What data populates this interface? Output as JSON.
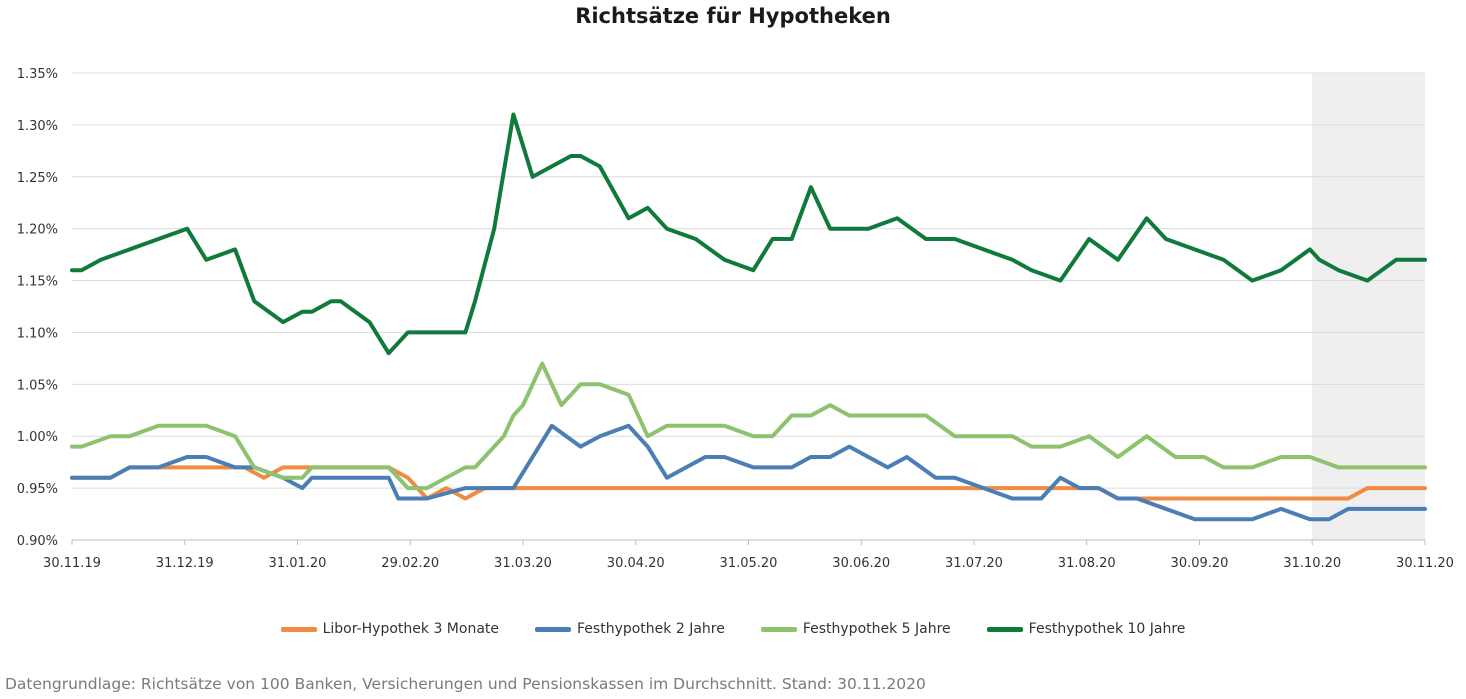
{
  "chart_data": {
    "type": "line",
    "title": "Richtsätze für Hypotheken",
    "x_tick_labels": [
      "30.11.19",
      "31.12.19",
      "31.01.20",
      "29.02.20",
      "31.03.20",
      "30.04.20",
      "31.05.20",
      "30.06.20",
      "31.07.20",
      "31.08.20",
      "30.09.20",
      "31.10.20",
      "30.11.20"
    ],
    "y_tick_labels": [
      "0.90%",
      "0.95%",
      "1.00%",
      "1.05%",
      "1.10%",
      "1.15%",
      "1.20%",
      "1.25%",
      "1.30%",
      "1.35%"
    ],
    "ylim": [
      0.9,
      1.35
    ],
    "y_unit": "%",
    "grid": "horizontal",
    "legend_position": "bottom",
    "highlight_region": {
      "from": "31.10.20",
      "to": "30.11.20",
      "color": "#efefef"
    },
    "series": [
      {
        "name": "Libor-Hypothek 3 Monate",
        "color": "#ef8b42",
        "x": [
          0,
          2,
          4,
          6,
          8,
          10,
          12,
          14,
          16,
          18,
          20,
          22,
          24,
          25,
          27,
          28,
          29,
          31,
          33,
          35,
          37,
          39,
          41,
          43,
          45,
          47,
          49,
          51,
          53,
          55,
          57,
          59,
          61,
          63,
          65,
          67,
          69,
          71,
          73,
          75,
          77,
          79,
          81,
          83,
          85,
          87,
          89,
          91,
          93,
          95,
          97,
          99,
          101,
          103,
          105,
          107,
          109,
          111,
          113,
          115,
          117,
          119,
          121,
          123,
          125,
          127,
          129,
          131,
          133,
          135,
          137,
          139,
          141
        ],
        "values": [
          0.96,
          0.96,
          0.96,
          0.97,
          0.97,
          0.97,
          0.97,
          0.97,
          0.97,
          0.97,
          0.96,
          0.97,
          0.97,
          0.97,
          0.97,
          0.97,
          0.97,
          0.97,
          0.97,
          0.96,
          0.94,
          0.95,
          0.94,
          0.95,
          0.95,
          0.95,
          0.95,
          0.95,
          0.95,
          0.95,
          0.95,
          0.95,
          0.95,
          0.95,
          0.95,
          0.95,
          0.95,
          0.95,
          0.95,
          0.95,
          0.95,
          0.95,
          0.95,
          0.95,
          0.95,
          0.95,
          0.95,
          0.95,
          0.95,
          0.95,
          0.95,
          0.95,
          0.95,
          0.95,
          0.95,
          0.95,
          0.94,
          0.94,
          0.94,
          0.94,
          0.94,
          0.94,
          0.94,
          0.94,
          0.94,
          0.94,
          0.94,
          0.94,
          0.94,
          0.95,
          0.95,
          0.95,
          0.95
        ]
      },
      {
        "name": "Festhypothek 2 Jahre",
        "color": "#4a7eb5",
        "x": [
          0,
          1,
          4,
          6,
          9,
          12,
          14,
          17,
          19,
          22,
          24,
          25,
          28,
          29,
          31,
          33,
          34,
          37,
          41,
          43,
          45,
          46,
          48,
          50,
          53,
          55,
          58,
          60,
          62,
          64,
          66,
          68,
          71,
          73,
          75,
          77,
          79,
          81,
          83,
          85,
          87,
          90,
          92,
          95,
          98,
          101,
          103,
          105,
          107,
          109,
          111,
          114,
          117,
          120,
          123,
          126,
          129,
          131,
          133,
          135,
          137,
          139,
          141
        ],
        "values": [
          0.96,
          0.96,
          0.96,
          0.97,
          0.97,
          0.98,
          0.98,
          0.97,
          0.97,
          0.96,
          0.95,
          0.96,
          0.96,
          0.96,
          0.96,
          0.96,
          0.94,
          0.94,
          0.95,
          0.95,
          0.95,
          0.95,
          0.98,
          1.01,
          0.99,
          1.0,
          1.01,
          0.99,
          0.96,
          0.97,
          0.98,
          0.98,
          0.97,
          0.97,
          0.97,
          0.98,
          0.98,
          0.99,
          0.98,
          0.97,
          0.98,
          0.96,
          0.96,
          0.95,
          0.94,
          0.94,
          0.96,
          0.95,
          0.95,
          0.94,
          0.94,
          0.93,
          0.92,
          0.92,
          0.92,
          0.93,
          0.92,
          0.92,
          0.93,
          0.93,
          0.93,
          0.93,
          0.93
        ]
      },
      {
        "name": "Festhypothek 5 Jahre",
        "color": "#8dc26f",
        "x": [
          0,
          1,
          4,
          6,
          9,
          12,
          14,
          17,
          19,
          22,
          24,
          25,
          28,
          29,
          31,
          33,
          34,
          35,
          37,
          39,
          41,
          42,
          44,
          45,
          46,
          47,
          49,
          51,
          53,
          55,
          58,
          60,
          62,
          64,
          66,
          68,
          71,
          73,
          75,
          77,
          79,
          81,
          83,
          86,
          89,
          92,
          95,
          98,
          100,
          103,
          106,
          109,
          112,
          115,
          118,
          120,
          123,
          126,
          129,
          132,
          135,
          138,
          141
        ],
        "values": [
          0.99,
          0.99,
          1.0,
          1.0,
          1.01,
          1.01,
          1.01,
          1.0,
          0.97,
          0.96,
          0.96,
          0.97,
          0.97,
          0.97,
          0.97,
          0.97,
          0.96,
          0.95,
          0.95,
          0.96,
          0.97,
          0.97,
          0.99,
          1.0,
          1.02,
          1.03,
          1.07,
          1.03,
          1.05,
          1.05,
          1.04,
          1.0,
          1.01,
          1.01,
          1.01,
          1.01,
          1.0,
          1.0,
          1.02,
          1.02,
          1.03,
          1.02,
          1.02,
          1.02,
          1.02,
          1.0,
          1.0,
          1.0,
          0.99,
          0.99,
          1.0,
          0.98,
          1.0,
          0.98,
          0.98,
          0.97,
          0.97,
          0.98,
          0.98,
          0.97,
          0.97,
          0.97,
          0.97
        ]
      },
      {
        "name": "Festhypothek 10 Jahre",
        "color": "#0f7a3b",
        "x": [
          0,
          1,
          3,
          6,
          9,
          12,
          14,
          17,
          19,
          22,
          24,
          25,
          27,
          28,
          31,
          33,
          34,
          35,
          37,
          39,
          41,
          42,
          44,
          46,
          48,
          50,
          52,
          53,
          55,
          58,
          60,
          62,
          65,
          68,
          71,
          73,
          75,
          77,
          79,
          81,
          83,
          86,
          89,
          92,
          95,
          98,
          100,
          103,
          106,
          109,
          112,
          114,
          117,
          120,
          123,
          126,
          129,
          130,
          132,
          135,
          138,
          141
        ],
        "values": [
          1.16,
          1.16,
          1.17,
          1.18,
          1.19,
          1.2,
          1.17,
          1.18,
          1.13,
          1.11,
          1.12,
          1.12,
          1.13,
          1.13,
          1.11,
          1.08,
          1.09,
          1.1,
          1.1,
          1.1,
          1.1,
          1.13,
          1.2,
          1.31,
          1.25,
          1.26,
          1.27,
          1.27,
          1.26,
          1.21,
          1.22,
          1.2,
          1.19,
          1.17,
          1.16,
          1.19,
          1.19,
          1.24,
          1.2,
          1.2,
          1.2,
          1.21,
          1.19,
          1.19,
          1.18,
          1.17,
          1.16,
          1.15,
          1.19,
          1.17,
          1.21,
          1.19,
          1.18,
          1.17,
          1.15,
          1.16,
          1.18,
          1.17,
          1.16,
          1.15,
          1.17,
          1.17
        ]
      }
    ],
    "x_domain": [
      0,
      141
    ]
  },
  "footnote": "Datengrundlage: Richtsätze von 100 Banken, Versicherungen und Pensionskassen im Durchschnitt. Stand: 30.11.2020"
}
